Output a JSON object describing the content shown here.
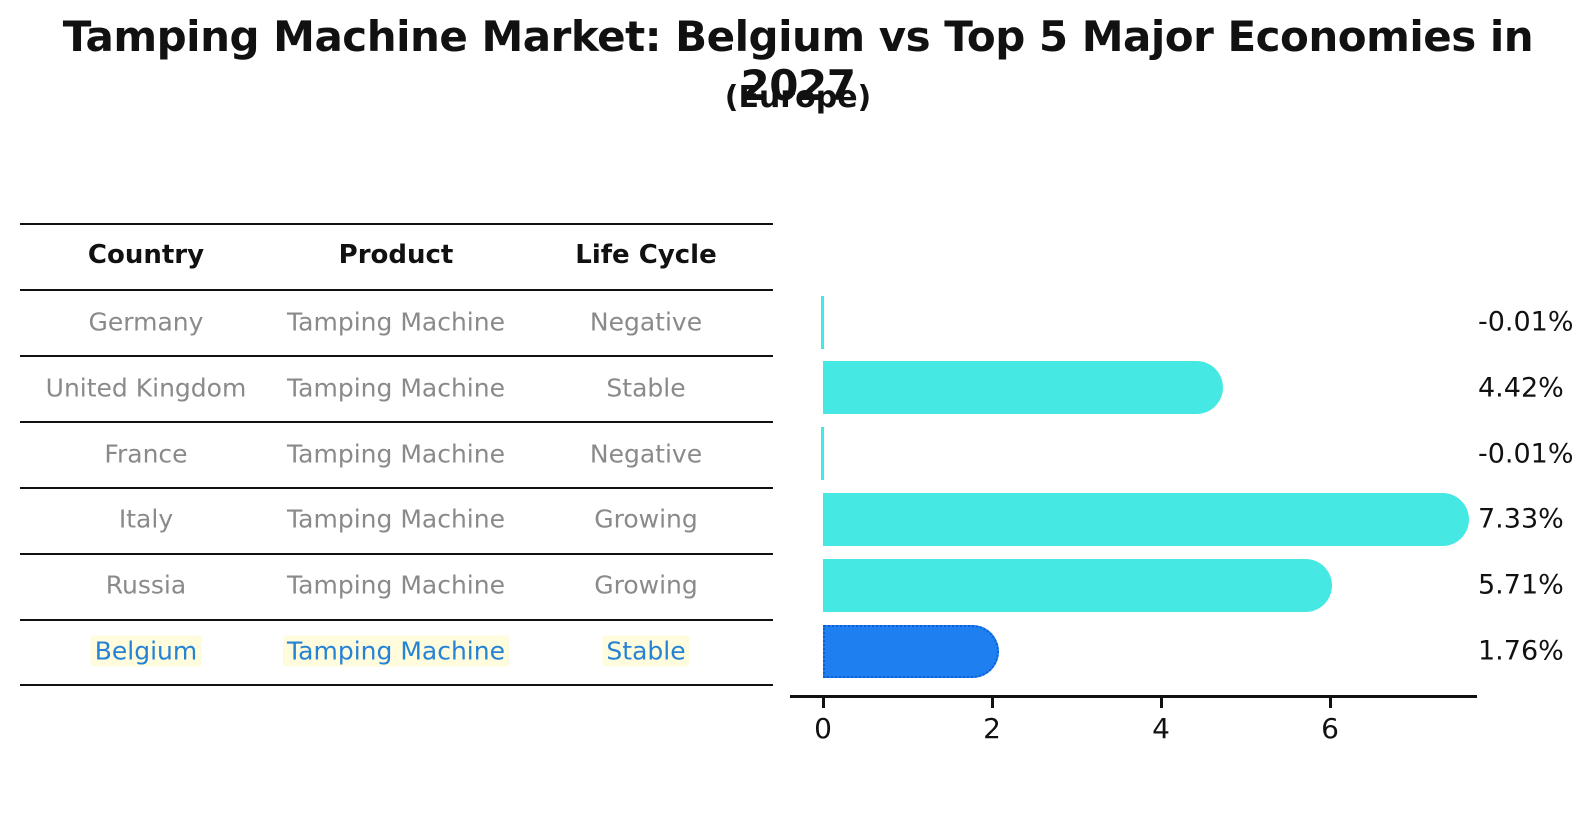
{
  "title": "Tamping Machine Market: Belgium vs Top 5 Major Economies in 2027",
  "subtitle": "(Europe)",
  "table": {
    "headers": [
      "Country",
      "Product",
      "Life Cycle"
    ],
    "rows": [
      {
        "country": "Germany",
        "product": "Tamping Machine",
        "life_cycle": "Negative",
        "value": -0.01,
        "value_label": "-0.01%",
        "highlighted": false
      },
      {
        "country": "United Kingdom",
        "product": "Tamping Machine",
        "life_cycle": "Stable",
        "value": 4.42,
        "value_label": "4.42%",
        "highlighted": false
      },
      {
        "country": "France",
        "product": "Tamping Machine",
        "life_cycle": "Negative",
        "value": -0.01,
        "value_label": "-0.01%",
        "highlighted": false
      },
      {
        "country": "Italy",
        "product": "Tamping Machine",
        "life_cycle": "Growing",
        "value": 7.33,
        "value_label": "7.33%",
        "highlighted": false
      },
      {
        "country": "Russia",
        "product": "Tamping Machine",
        "life_cycle": "Growing",
        "value": 5.71,
        "value_label": "5.71%",
        "highlighted": false
      },
      {
        "country": "Belgium",
        "product": "Tamping Machine",
        "life_cycle": "Stable",
        "value": 1.76,
        "value_label": "1.76%",
        "highlighted": true
      }
    ]
  },
  "chart_data": {
    "type": "bar",
    "orientation": "horizontal",
    "title": "Tamping Machine Market: Belgium vs Top 5 Major Economies in 2027 (Europe)",
    "categories": [
      "Germany",
      "United Kingdom",
      "France",
      "Italy",
      "Russia",
      "Belgium"
    ],
    "values": [
      -0.01,
      4.42,
      -0.01,
      7.33,
      5.71,
      1.76
    ],
    "value_labels": [
      "-0.01%",
      "4.42%",
      "-0.01%",
      "7.33%",
      "5.71%",
      "1.76%"
    ],
    "xlabel": "",
    "ylabel": "",
    "xlim": [
      0,
      7.7
    ],
    "x_ticks": [
      0,
      2,
      4,
      6
    ],
    "x_tick_labels": [
      "0",
      "2",
      "4",
      "6"
    ],
    "grid": false,
    "legend": false,
    "highlight_category": "Belgium"
  },
  "colors": {
    "bar": "#45e8e2",
    "highlight_bar": "#1d7ff0",
    "highlight_bar_border": "#0d5fd8",
    "highlight_text": "#2583d6",
    "row_text": "#8a8a8a",
    "axis": "#111111"
  }
}
